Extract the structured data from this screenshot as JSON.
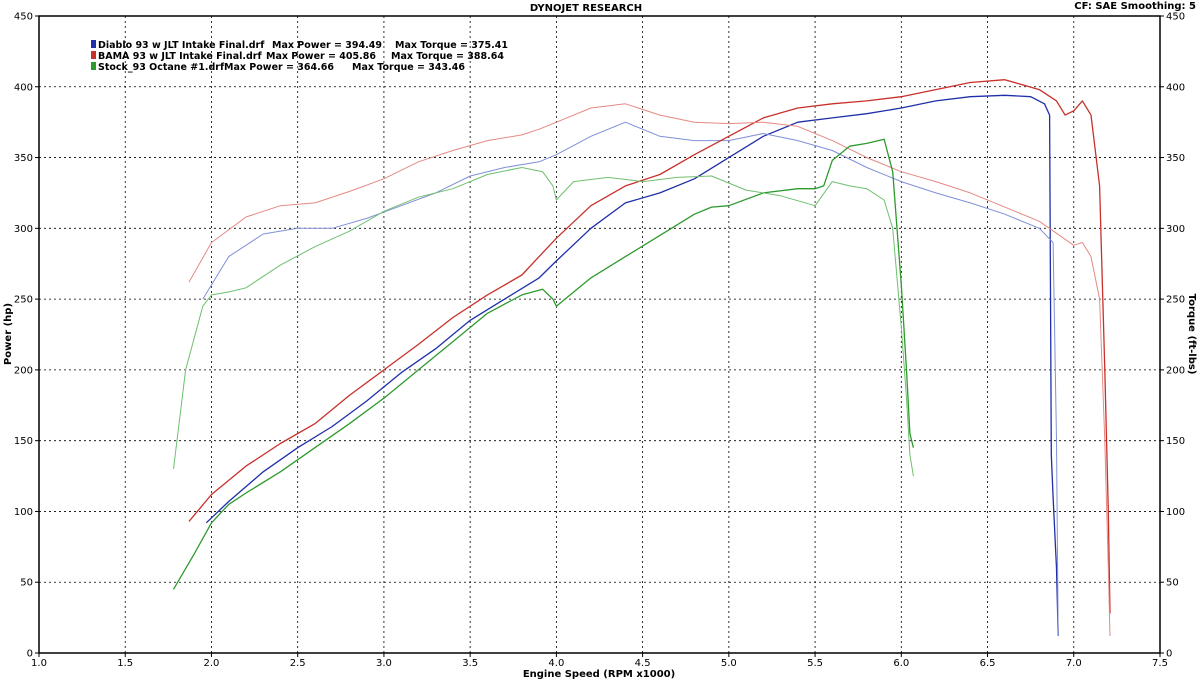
{
  "chart_data": {
    "type": "line",
    "title": "DYNOJET RESEARCH",
    "header_right": "CF: SAE  Smoothing: 5",
    "xlabel": "Engine Speed (RPM x1000)",
    "ylabel": "Power (hp)",
    "y2label": "Torque (ft-lbs)",
    "xlim": [
      1.0,
      7.5
    ],
    "ylim": [
      0,
      450
    ],
    "y2lim": [
      0,
      450
    ],
    "x_ticks": [
      "1.0",
      "1.5",
      "2.0",
      "2.5",
      "3.0",
      "3.5",
      "4.0",
      "4.5",
      "5.0",
      "5.5",
      "6.0",
      "6.5",
      "7.0",
      "7.5"
    ],
    "y_ticks": [
      "0",
      "50",
      "100",
      "150",
      "200",
      "250",
      "300",
      "350",
      "400",
      "450"
    ],
    "y2_ticks": [
      "0",
      "50",
      "100",
      "150",
      "200",
      "250",
      "300",
      "350",
      "400",
      "450"
    ],
    "grid": true,
    "legend_position": "top-left",
    "legend": [
      {
        "name": "Diablo 93 w JLT Intake Final.drf",
        "power_label": "Max Power = 394.49",
        "torque_label": "Max Torque = 375.41",
        "color": "#1f2fa8"
      },
      {
        "name": "BAMA 93 w JLT Intake Final.drf",
        "power_label": "Max Power = 405.86",
        "torque_label": "Max Torque = 388.64",
        "color": "#c8302a"
      },
      {
        "name": "Stock_93 Octane #1.drf",
        "power_label": "Max Power = 364.66",
        "torque_label": "Max Torque = 343.46",
        "color": "#2e9a2e"
      }
    ],
    "series": [
      {
        "name": "Diablo 93 w JLT Intake Final.drf",
        "kind": "power",
        "color": "#1f2fa8",
        "x": [
          1.97,
          2.1,
          2.3,
          2.5,
          2.7,
          2.9,
          3.1,
          3.3,
          3.5,
          3.7,
          3.9,
          4.0,
          4.2,
          4.4,
          4.6,
          4.8,
          5.0,
          5.2,
          5.4,
          5.6,
          5.8,
          6.0,
          6.2,
          6.4,
          6.6,
          6.75,
          6.83,
          6.86,
          6.87,
          6.88,
          6.9,
          6.91
        ],
        "y": [
          92,
          107,
          128,
          145,
          160,
          178,
          198,
          215,
          235,
          250,
          265,
          277,
          300,
          318,
          325,
          335,
          350,
          365,
          375,
          378,
          381,
          385,
          390,
          393,
          394,
          393,
          388,
          380,
          140,
          110,
          60,
          12
        ]
      },
      {
        "name": "Diablo 93 w JLT Intake Final.drf",
        "kind": "torque",
        "color": "#8090d8",
        "x": [
          1.95,
          2.1,
          2.3,
          2.5,
          2.7,
          2.9,
          3.1,
          3.3,
          3.5,
          3.7,
          3.9,
          4.0,
          4.2,
          4.4,
          4.6,
          4.8,
          5.0,
          5.2,
          5.4,
          5.6,
          5.8,
          6.0,
          6.2,
          6.4,
          6.6,
          6.8,
          6.88,
          6.9,
          6.91
        ],
        "y": [
          250,
          280,
          296,
          300,
          300,
          307,
          316,
          325,
          337,
          343,
          347,
          352,
          365,
          375,
          365,
          362,
          362,
          367,
          362,
          355,
          343,
          333,
          325,
          318,
          310,
          300,
          290,
          150,
          12
        ]
      },
      {
        "name": "BAMA 93 w JLT Intake Final.drf",
        "kind": "power",
        "color": "#c8302a",
        "x": [
          1.87,
          2.0,
          2.2,
          2.4,
          2.6,
          2.8,
          3.0,
          3.2,
          3.4,
          3.6,
          3.8,
          3.9,
          4.0,
          4.2,
          4.4,
          4.6,
          4.8,
          5.0,
          5.2,
          5.4,
          5.6,
          5.8,
          6.0,
          6.2,
          6.4,
          6.6,
          6.8,
          6.9,
          6.95,
          7.0,
          7.05,
          7.1,
          7.15,
          7.18,
          7.2,
          7.21
        ],
        "y": [
          93,
          112,
          132,
          148,
          162,
          182,
          200,
          218,
          237,
          253,
          267,
          280,
          293,
          316,
          330,
          338,
          352,
          365,
          378,
          385,
          388,
          390,
          393,
          398,
          403,
          405,
          398,
          390,
          380,
          383,
          390,
          380,
          330,
          200,
          100,
          28
        ]
      },
      {
        "name": "BAMA 93 w JLT Intake Final.drf",
        "kind": "torque",
        "color": "#e58a84",
        "x": [
          1.87,
          2.0,
          2.2,
          2.4,
          2.6,
          2.8,
          3.0,
          3.2,
          3.4,
          3.6,
          3.8,
          3.9,
          4.0,
          4.2,
          4.4,
          4.6,
          4.8,
          5.0,
          5.2,
          5.4,
          5.6,
          5.8,
          6.0,
          6.2,
          6.4,
          6.6,
          6.8,
          7.0,
          7.05,
          7.1,
          7.15,
          7.18,
          7.2,
          7.21
        ],
        "y": [
          262,
          290,
          308,
          316,
          318,
          326,
          335,
          347,
          355,
          362,
          366,
          370,
          375,
          385,
          388,
          380,
          375,
          374,
          375,
          372,
          362,
          350,
          340,
          333,
          325,
          315,
          305,
          288,
          290,
          280,
          250,
          150,
          60,
          12
        ]
      },
      {
        "name": "Stock_93 Octane #1.drf",
        "kind": "power",
        "color": "#2e9a2e",
        "x": [
          1.78,
          1.9,
          2.0,
          2.1,
          2.2,
          2.4,
          2.6,
          2.8,
          3.0,
          3.2,
          3.4,
          3.6,
          3.8,
          3.92,
          3.98,
          4.0,
          4.05,
          4.2,
          4.4,
          4.6,
          4.8,
          4.9,
          5.0,
          5.2,
          5.4,
          5.5,
          5.55,
          5.6,
          5.7,
          5.8,
          5.9,
          5.95,
          6.0,
          6.03,
          6.05,
          6.07
        ],
        "y": [
          45,
          70,
          92,
          105,
          113,
          128,
          145,
          162,
          180,
          200,
          220,
          240,
          253,
          257,
          250,
          245,
          250,
          265,
          280,
          295,
          310,
          315,
          316,
          325,
          328,
          328,
          330,
          348,
          358,
          360,
          363,
          340,
          260,
          200,
          155,
          145
        ]
      },
      {
        "name": "Stock_93 Octane #1.drf",
        "kind": "torque",
        "color": "#6fbf6f",
        "x": [
          1.78,
          1.85,
          1.95,
          2.0,
          2.1,
          2.2,
          2.4,
          2.6,
          2.8,
          3.0,
          3.2,
          3.4,
          3.6,
          3.8,
          3.92,
          3.98,
          4.0,
          4.1,
          4.3,
          4.5,
          4.7,
          4.9,
          5.1,
          5.3,
          5.5,
          5.6,
          5.7,
          5.8,
          5.9,
          5.95,
          6.0,
          6.03,
          6.05,
          6.07
        ],
        "y": [
          130,
          200,
          245,
          253,
          255,
          258,
          274,
          287,
          298,
          312,
          322,
          328,
          338,
          343,
          340,
          330,
          320,
          333,
          336,
          333,
          336,
          337,
          327,
          323,
          316,
          333,
          330,
          328,
          320,
          300,
          230,
          180,
          140,
          125
        ]
      }
    ]
  }
}
